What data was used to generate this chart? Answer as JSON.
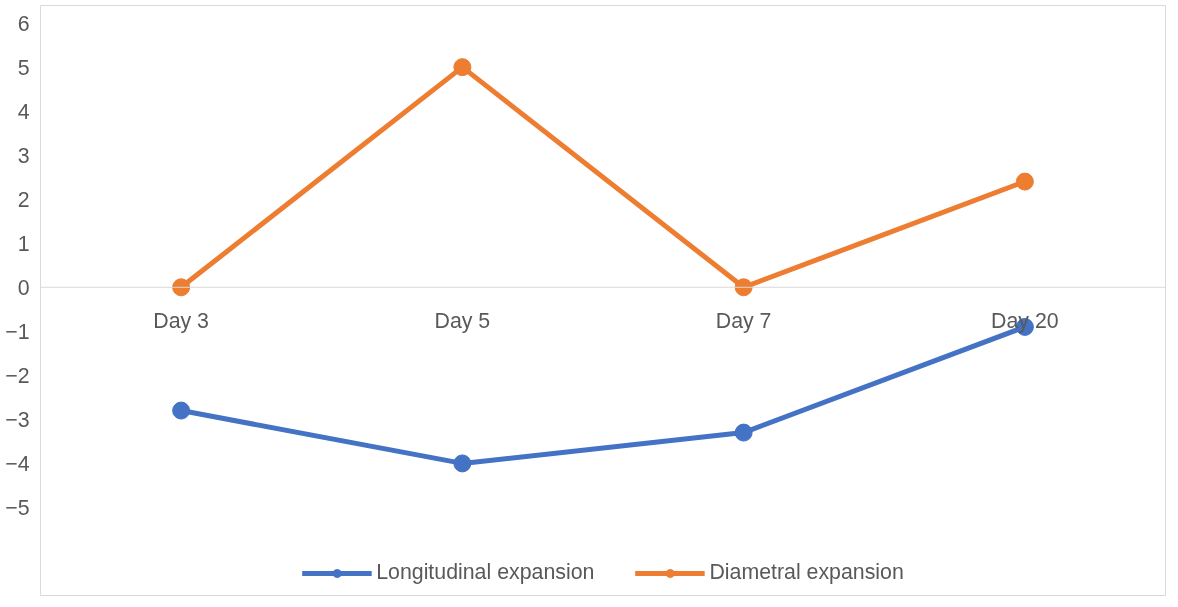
{
  "chart_data": {
    "type": "line",
    "categories": [
      "Day 3",
      "Day 5",
      "Day 7",
      "Day 20"
    ],
    "series": [
      {
        "name": "Longitudinal expansion",
        "color": "#4472c4",
        "values": [
          -2.8,
          -4.0,
          -3.3,
          -0.9
        ]
      },
      {
        "name": "Diametral expansion",
        "color": "#ed7d31",
        "values": [
          0,
          5,
          0,
          2.4
        ]
      }
    ],
    "ylim": [
      -7.0,
      6.4
    ],
    "yticks": [
      -5,
      -4,
      -3,
      -2,
      -1,
      0,
      1,
      2,
      3,
      4,
      5,
      6
    ],
    "grid": false,
    "legend": "bottom",
    "marker": "circle",
    "line_style": "solid"
  }
}
